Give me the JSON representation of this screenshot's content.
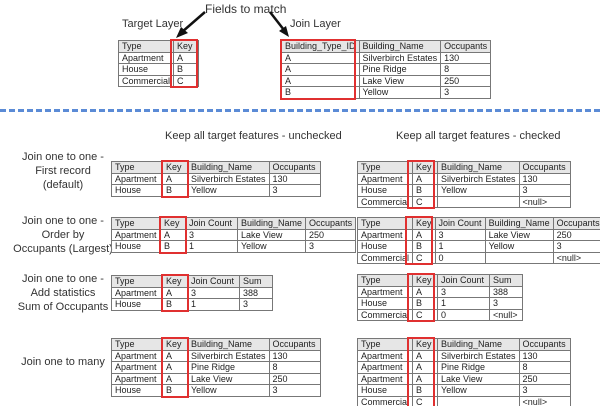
{
  "top": {
    "fields_label": "Fields to match",
    "target_label": "Target Layer",
    "join_label": "Join Layer",
    "target_table": {
      "headers": [
        "Type",
        "Key"
      ],
      "rows": [
        [
          "Apartment",
          "A"
        ],
        [
          "House",
          "B"
        ],
        [
          "Commercial",
          "C"
        ]
      ],
      "key_col": 1
    },
    "join_table": {
      "headers": [
        "Building_Type_ID",
        "Building_Name",
        "Occupants"
      ],
      "rows": [
        [
          "A",
          "Silverbirch Estates",
          "130"
        ],
        [
          "A",
          "Pine Ridge",
          "8"
        ],
        [
          "A",
          "Lake View",
          "250"
        ],
        [
          "B",
          "Yellow",
          "3"
        ]
      ],
      "key_col": 0
    }
  },
  "columns": {
    "unchecked": "Keep all target features - unchecked",
    "checked": "Keep all target features - checked"
  },
  "sections": [
    {
      "label": [
        "Join one to one -",
        "First record",
        "(default)"
      ],
      "unchecked": {
        "headers": [
          "Type",
          "Key",
          "Building_Name",
          "Occupants"
        ],
        "rows": [
          [
            "Apartment",
            "A",
            "Silverbirch Estates",
            "130"
          ],
          [
            "House",
            "B",
            "Yellow",
            "3"
          ]
        ],
        "key_col": 1
      },
      "checked": {
        "headers": [
          "Type",
          "Key",
          "Building_Name",
          "Occupants"
        ],
        "rows": [
          [
            "Apartment",
            "A",
            "Silverbirch Estates",
            "130"
          ],
          [
            "House",
            "B",
            "Yellow",
            "3"
          ],
          [
            "Commercial",
            "C",
            "",
            "<null>"
          ]
        ],
        "key_col": 1
      }
    },
    {
      "label": [
        "Join one to one -",
        "Order by",
        "Occupants (Largest)"
      ],
      "unchecked": {
        "headers": [
          "Type",
          "Key",
          "Join Count",
          "Building_Name",
          "Occupants"
        ],
        "rows": [
          [
            "Apartment",
            "A",
            "3",
            "Lake View",
            "250"
          ],
          [
            "House",
            "B",
            "1",
            "Yellow",
            "3"
          ]
        ],
        "key_col": 1
      },
      "checked": {
        "headers": [
          "Type",
          "Key",
          "Join Count",
          "Building_Name",
          "Occupants"
        ],
        "rows": [
          [
            "Apartment",
            "A",
            "3",
            "Lake View",
            "250"
          ],
          [
            "House",
            "B",
            "1",
            "Yellow",
            "3"
          ],
          [
            "Commercial",
            "C",
            "0",
            "",
            "<null>"
          ]
        ],
        "key_col": 1
      }
    },
    {
      "label": [
        "Join one to one -",
        "Add statistics",
        "Sum of Occupants"
      ],
      "unchecked": {
        "headers": [
          "Type",
          "Key",
          "Join Count",
          "Sum"
        ],
        "rows": [
          [
            "Apartment",
            "A",
            "3",
            "388"
          ],
          [
            "House",
            "B",
            "1",
            "3"
          ]
        ],
        "key_col": 1
      },
      "checked": {
        "headers": [
          "Type",
          "Key",
          "Join Count",
          "Sum"
        ],
        "rows": [
          [
            "Apartment",
            "A",
            "3",
            "388"
          ],
          [
            "House",
            "B",
            "1",
            "3"
          ],
          [
            "Commercial",
            "C",
            "0",
            "<null>"
          ]
        ],
        "key_col": 1
      }
    },
    {
      "label": [
        "Join one to many"
      ],
      "unchecked": {
        "headers": [
          "Type",
          "Key",
          "Building_Name",
          "Occupants"
        ],
        "rows": [
          [
            "Apartment",
            "A",
            "Silverbirch Estates",
            "130"
          ],
          [
            "Apartment",
            "A",
            "Pine Ridge",
            "8"
          ],
          [
            "Apartment",
            "A",
            "Lake View",
            "250"
          ],
          [
            "House",
            "B",
            "Yellow",
            "3"
          ]
        ],
        "key_col": 1
      },
      "checked": {
        "headers": [
          "Type",
          "Key",
          "Building_Name",
          "Occupants"
        ],
        "rows": [
          [
            "Apartment",
            "A",
            "Silverbirch Estates",
            "130"
          ],
          [
            "Apartment",
            "A",
            "Pine Ridge",
            "8"
          ],
          [
            "Apartment",
            "A",
            "Lake View",
            "250"
          ],
          [
            "House",
            "B",
            "Yellow",
            "3"
          ],
          [
            "Commercial",
            "C",
            "",
            "<null>"
          ]
        ],
        "key_col": 1
      }
    }
  ]
}
